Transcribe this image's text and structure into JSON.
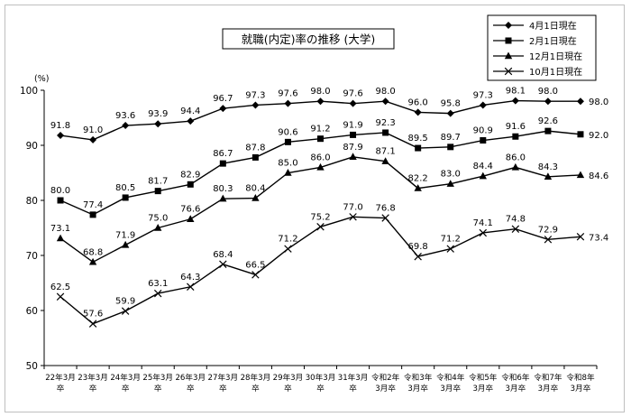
{
  "chart_data": {
    "type": "line",
    "title": "就職(内定)率の推移 (大学)",
    "ylabel": "(%)",
    "ylim": [
      50,
      100
    ],
    "yticks": [
      50,
      60,
      70,
      80,
      90,
      100
    ],
    "grid": false,
    "legend_position": "top-right",
    "categories": [
      [
        "22年3月",
        "卒"
      ],
      [
        "23年3月",
        "卒"
      ],
      [
        "24年3月",
        "卒"
      ],
      [
        "25年3月",
        "卒"
      ],
      [
        "26年3月",
        "卒"
      ],
      [
        "27年3月",
        "卒"
      ],
      [
        "28年3月",
        "卒"
      ],
      [
        "29年3月",
        "卒"
      ],
      [
        "30年3月",
        "卒"
      ],
      [
        "31年3月",
        "卒"
      ],
      [
        "令和2年",
        "3月卒"
      ],
      [
        "令和3年",
        "3月卒"
      ],
      [
        "令和4年",
        "3月卒"
      ],
      [
        "令和5年",
        "3月卒"
      ],
      [
        "令和6年",
        "3月卒"
      ],
      [
        "令和7年",
        "3月卒"
      ],
      [
        "令和8年",
        "3月卒"
      ]
    ],
    "series": [
      {
        "name": "4月1日現在",
        "marker": "diamond",
        "values": [
          91.8,
          91.0,
          93.6,
          93.9,
          94.4,
          96.7,
          97.3,
          97.6,
          98.0,
          97.6,
          98.0,
          96.0,
          95.8,
          97.3,
          98.1,
          98.0,
          98.0
        ]
      },
      {
        "name": "2月1日現在",
        "marker": "square",
        "values": [
          80.0,
          77.4,
          80.5,
          81.7,
          82.9,
          86.7,
          87.8,
          90.6,
          91.2,
          91.9,
          92.3,
          89.5,
          89.7,
          90.9,
          91.6,
          92.6,
          92.0
        ]
      },
      {
        "name": "12月1日現在",
        "marker": "triangle",
        "values": [
          73.1,
          68.8,
          71.9,
          75.0,
          76.6,
          80.3,
          80.4,
          85.0,
          86.0,
          87.9,
          87.1,
          82.2,
          83.0,
          84.4,
          86.0,
          84.3,
          84.6
        ]
      },
      {
        "name": "10月1日現在",
        "marker": "x",
        "values": [
          62.5,
          57.6,
          59.9,
          63.1,
          64.3,
          68.4,
          66.5,
          71.2,
          75.2,
          77.0,
          76.8,
          69.8,
          71.2,
          74.1,
          74.8,
          72.9,
          73.4
        ]
      }
    ]
  }
}
